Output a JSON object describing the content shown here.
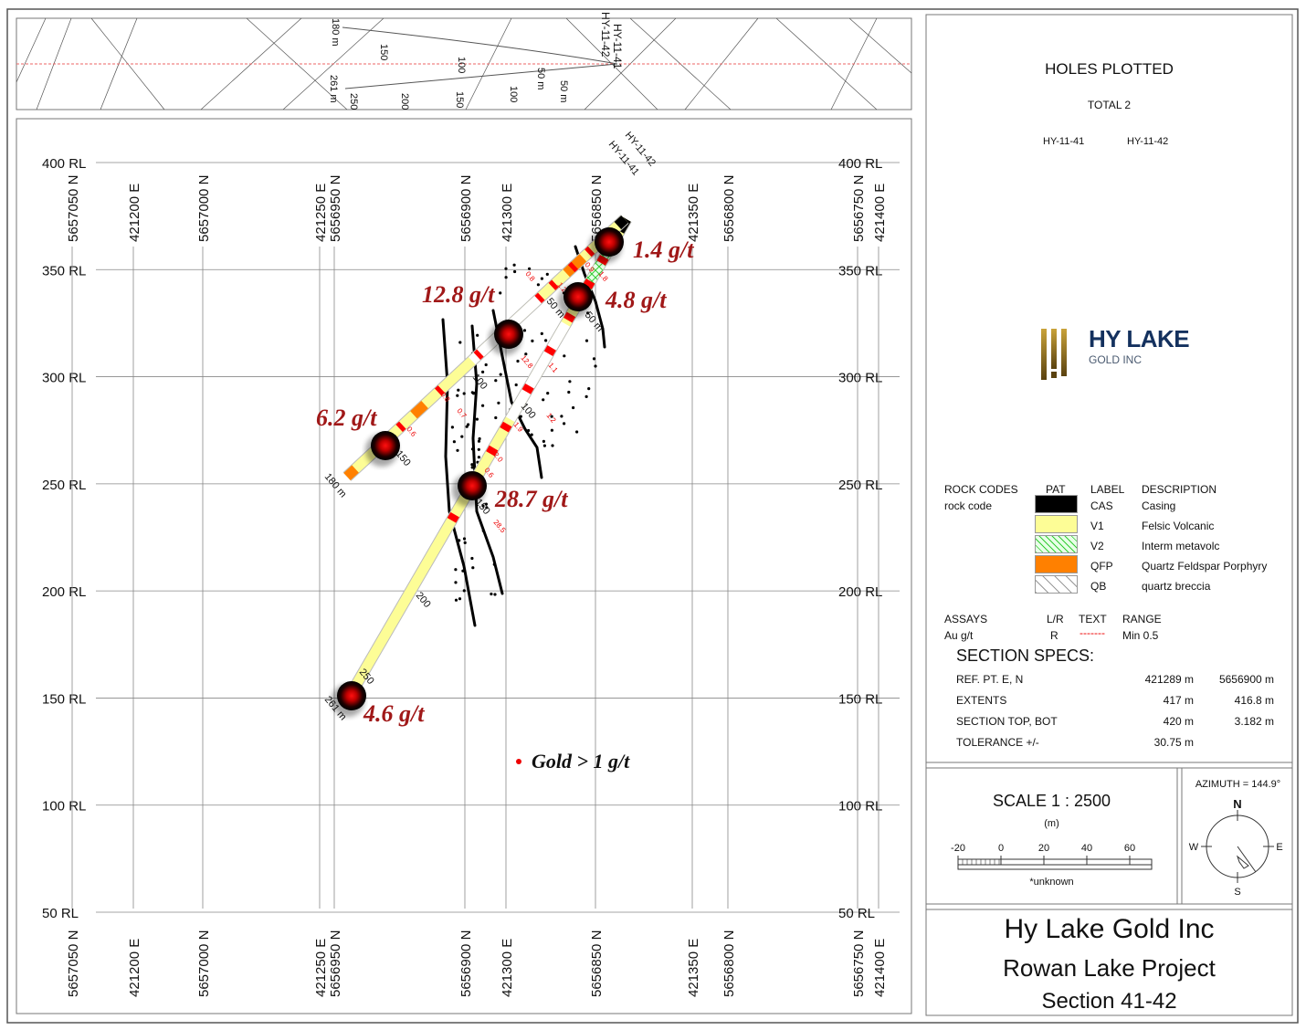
{
  "section": {
    "rl_labels": [
      "400 RL",
      "350 RL",
      "300 RL",
      "250 RL",
      "200 RL",
      "150 RL",
      "100 RL",
      "50 RL"
    ],
    "grid_labels": [
      "5657050 N",
      "421200 E",
      "5657000 N",
      "421250 E",
      "5656950 N",
      "5656900 N",
      "421300 E",
      "5656850 N",
      "421350 E",
      "5656800 N",
      "5656750 N",
      "421400 E"
    ],
    "holes": [
      {
        "id": "HY-11-41",
        "length_label": "261 m",
        "depth_labels": [
          "50 m",
          "100",
          "150",
          "200",
          "250"
        ]
      },
      {
        "id": "HY-11-42",
        "length_label": "180 m",
        "depth_labels": [
          "50 m",
          "100",
          "150"
        ]
      }
    ],
    "gold_intercepts": [
      "1.4 g/t",
      "4.8 g/t",
      "12.8 g/t",
      "6.2 g/t",
      "28.7 g/t",
      "4.6 g/t"
    ],
    "assay_values": [
      "0.9",
      "1.2",
      "0.8",
      "1.8",
      "12.8",
      "1.1",
      "0.7",
      "0.8",
      "0.6",
      "1.9",
      "1.2",
      "2.0",
      "0.6",
      "28.5"
    ],
    "legend_note": "Gold > 1 g/t",
    "colors": {
      "felsic_volcanic": "#fdfd96",
      "qfp": "#ff8000",
      "casing": "#000000",
      "gold": "#a01818",
      "assay": "#ff0000",
      "interm_metavolc": "#33cc33"
    }
  },
  "plan": {
    "hole_labels": [
      "HY-11-41",
      "HY-11-42"
    ],
    "depth_labels_41": [
      "261 m",
      "250",
      "200",
      "150",
      "100",
      "50 m"
    ],
    "depth_labels_42": [
      "180 m",
      "150",
      "100",
      "50 m"
    ]
  },
  "panel": {
    "holes_title": "HOLES PLOTTED",
    "total": "TOTAL 2",
    "holes": [
      "HY-11-41",
      "HY-11-42"
    ],
    "logo": {
      "name": "HY LAKE",
      "sub": "GOLD INC"
    },
    "rock_codes": {
      "headers": [
        "ROCK CODES",
        "PAT",
        "LABEL",
        "DESCRIPTION"
      ],
      "subheader": "rock code",
      "rows": [
        {
          "label": "CAS",
          "description": "Casing",
          "pattern": "solid-black"
        },
        {
          "label": "V1",
          "description": "Felsic Volcanic",
          "pattern": "solid-yellow"
        },
        {
          "label": "V2",
          "description": "Interm metavolc",
          "pattern": "green-hatch"
        },
        {
          "label": "QFP",
          "description": "Quartz Feldspar Porphyry",
          "pattern": "solid-orange"
        },
        {
          "label": "QB",
          "description": "quartz breccia",
          "pattern": "diamond-fragments"
        }
      ]
    },
    "assays": {
      "headers": [
        "ASSAYS",
        "L/R",
        "TEXT",
        "RANGE"
      ],
      "row": [
        "Au g/t",
        "R",
        "-------",
        "Min 0.5"
      ]
    },
    "specs": {
      "title": "SECTION  SPECS:",
      "rows": [
        [
          "REF. PT.  E, N",
          "421289 m",
          "5656900 m"
        ],
        [
          "EXTENTS",
          "417 m",
          "416.8 m"
        ],
        [
          "SECTION TOP, BOT",
          "420 m",
          "3.182 m"
        ],
        [
          "TOLERANCE  +/-",
          "30.75 m",
          ""
        ]
      ]
    },
    "scale": {
      "title": "SCALE   1 : 2500",
      "unit": "(m)",
      "ticks": [
        "-20",
        "0",
        "20",
        "40",
        "60"
      ],
      "note": "*unknown"
    },
    "azimuth": {
      "label": "AZIMUTH = 144.9°",
      "value_deg": 144.9,
      "n": "N",
      "s": "S",
      "e": "E",
      "w": "W"
    },
    "title": {
      "company": "Hy Lake Gold Inc",
      "project": "Rowan Lake Project",
      "section": "Section 41-42"
    }
  }
}
